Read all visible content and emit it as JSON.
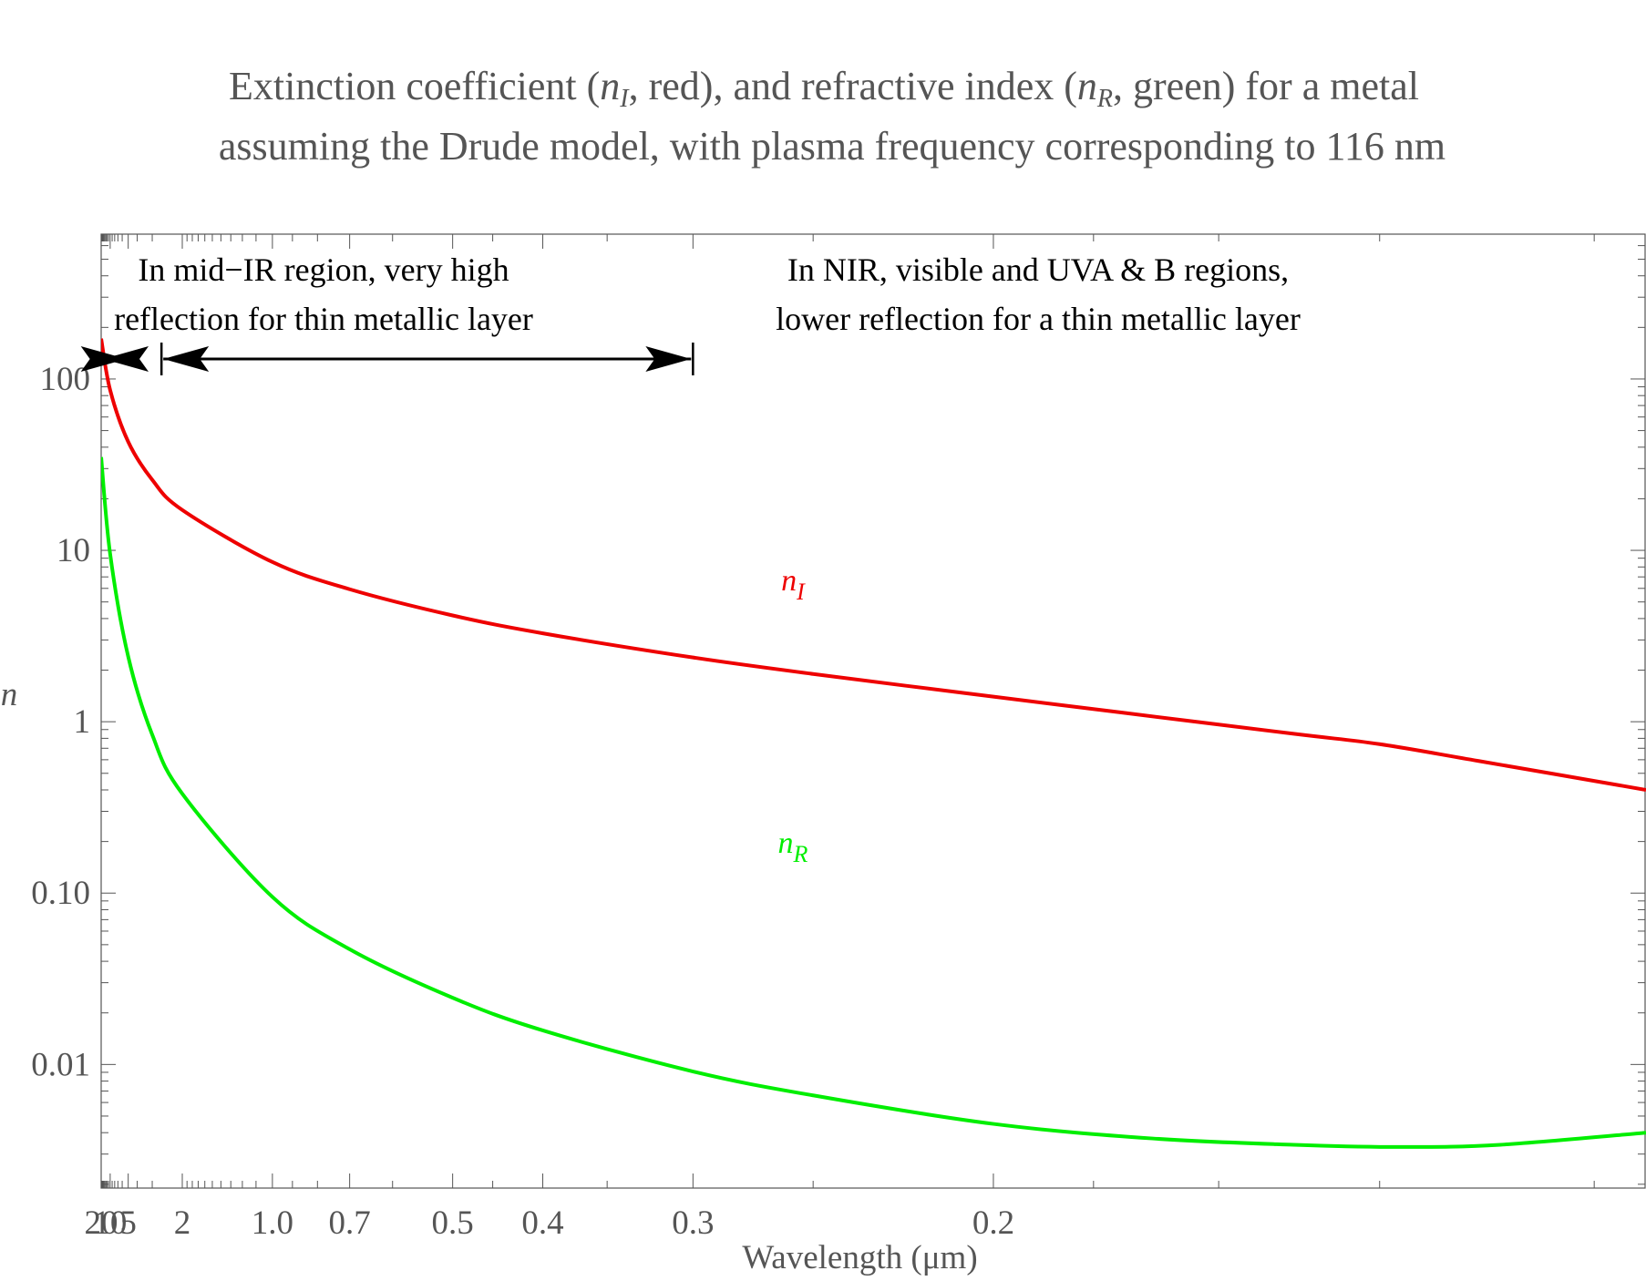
{
  "title": {
    "line1_pre": "Extinction coefficient (",
    "sym_I": "n",
    "sub_I": "I",
    "line1_mid": ", red), and refractive index (",
    "sym_R": "n",
    "sub_R": "R",
    "line1_post": ", green) for a metal",
    "line2": "assuming the Drude model, with plasma frequency corresponding to 116 nm"
  },
  "colors": {
    "n_I": "#ee0000",
    "n_R": "#00ee00",
    "axis": "#555555",
    "annotation": "#000000"
  },
  "chart_data": {
    "type": "line",
    "x_scale": "reciprocal",
    "y_scale": "log",
    "xlim": [
      20,
      0.116
    ],
    "ylim": [
      0.0019,
      700
    ],
    "xlabel": "Wavelength (μm)",
    "ylabel": "n",
    "x_tick_labels": [
      {
        "value": 20,
        "label": "20"
      },
      {
        "value": 10,
        "label": "10"
      },
      {
        "value": 5,
        "label": "5"
      },
      {
        "value": 2,
        "label": "2"
      },
      {
        "value": 1.0,
        "label": "1.0"
      },
      {
        "value": 0.7,
        "label": "0.7"
      },
      {
        "value": 0.5,
        "label": "0.5"
      },
      {
        "value": 0.4,
        "label": "0.4"
      },
      {
        "value": 0.3,
        "label": "0.3"
      },
      {
        "value": 0.2,
        "label": "0.2"
      }
    ],
    "y_tick_labels": [
      {
        "value": 100,
        "label": "100"
      },
      {
        "value": 10,
        "label": "10"
      },
      {
        "value": 1,
        "label": "1"
      },
      {
        "value": 0.1,
        "label": "0.10"
      },
      {
        "value": 0.01,
        "label": "0.01"
      }
    ],
    "grid": false,
    "series": [
      {
        "name": "n_I",
        "label_main": "n",
        "label_sub": "I",
        "color": "#ee0000",
        "points": [
          [
            20,
            172
          ],
          [
            10,
            86
          ],
          [
            5,
            43
          ],
          [
            3,
            25.8
          ],
          [
            2,
            17.2
          ],
          [
            1.0,
            8.55
          ],
          [
            0.7,
            5.93
          ],
          [
            0.5,
            4.17
          ],
          [
            0.4,
            3.28
          ],
          [
            0.3,
            2.37
          ],
          [
            0.25,
            1.9
          ],
          [
            0.2,
            1.4
          ],
          [
            0.175,
            1.13
          ],
          [
            0.15,
            0.85
          ],
          [
            0.14,
            0.74
          ],
          [
            0.13,
            0.59
          ],
          [
            0.116,
            0.4
          ]
        ]
      },
      {
        "name": "n_R",
        "label_main": "n",
        "label_sub": "R",
        "color": "#00ee00",
        "points": [
          [
            20,
            35
          ],
          [
            10,
            9.5
          ],
          [
            5,
            2.4
          ],
          [
            3,
            0.84
          ],
          [
            2,
            0.38
          ],
          [
            1.0,
            0.095
          ],
          [
            0.7,
            0.047
          ],
          [
            0.5,
            0.0245
          ],
          [
            0.4,
            0.0158
          ],
          [
            0.3,
            0.0091
          ],
          [
            0.25,
            0.0066
          ],
          [
            0.2,
            0.0045
          ],
          [
            0.17,
            0.0037
          ],
          [
            0.15,
            0.0034
          ],
          [
            0.138,
            0.0033
          ],
          [
            0.128,
            0.0034
          ],
          [
            0.116,
            0.004
          ]
        ]
      }
    ],
    "annotations": [
      {
        "line1": "In mid−IR region, very high",
        "line2": "reflection for thin metallic layer",
        "from": 20,
        "to": 5
      },
      {
        "line1": "In NIR, visible and UVA & B regions,",
        "line2": "lower reflection for a thin metallic layer",
        "from": 2.6,
        "to": 0.3
      }
    ]
  }
}
